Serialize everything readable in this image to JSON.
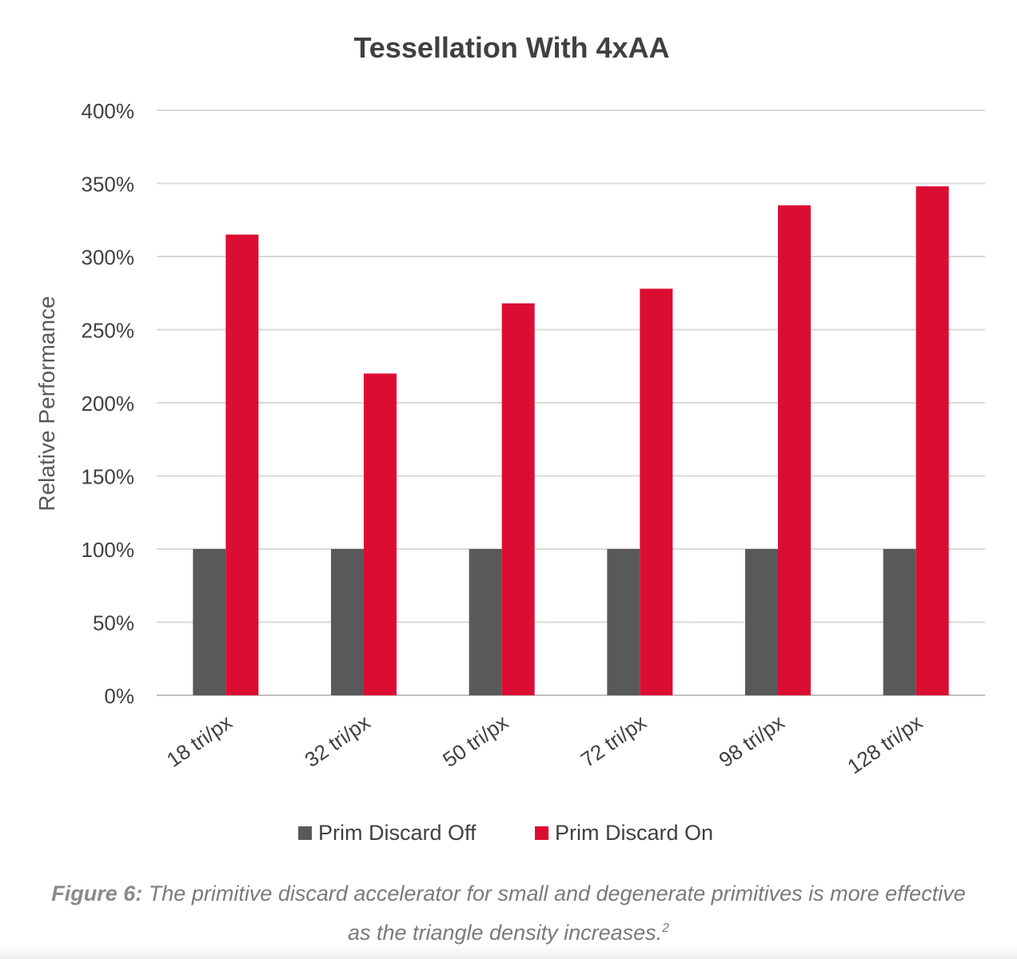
{
  "chart_data": {
    "type": "bar",
    "title": "Tessellation With 4xAA",
    "ylabel": "Relative Performance",
    "xlabel": "",
    "ylim": [
      0,
      400
    ],
    "yticks": [
      "0%",
      "50%",
      "100%",
      "150%",
      "200%",
      "250%",
      "300%",
      "350%",
      "400%"
    ],
    "grid": true,
    "legend_position": "bottom",
    "categories": [
      "18 tri/px",
      "32 tri/px",
      "50 tri/px",
      "72 tri/px",
      "98 tri/px",
      "128 tri/px"
    ],
    "series": [
      {
        "name": "Prim Discard Off",
        "color": "#595959",
        "values": [
          100,
          100,
          100,
          100,
          100,
          100
        ]
      },
      {
        "name": "Prim Discard On",
        "color": "#dc0d33",
        "values": [
          315,
          220,
          268,
          278,
          335,
          348
        ]
      }
    ]
  },
  "caption": {
    "lead": "Figure 6:",
    "text": "The primitive discard accelerator for small and degenerate primitives is more effective as the triangle density increases.",
    "footnote": "2"
  }
}
